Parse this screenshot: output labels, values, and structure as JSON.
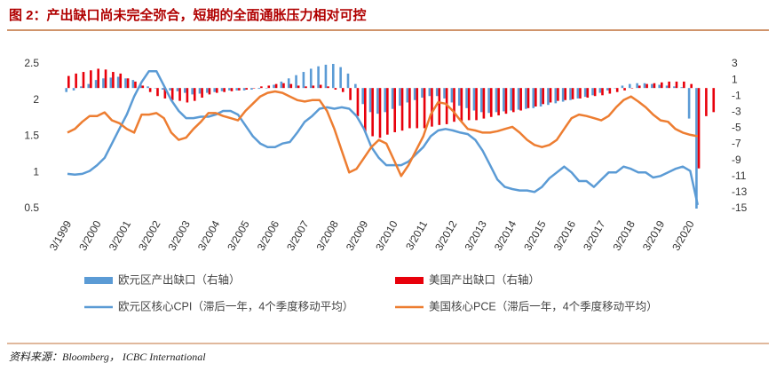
{
  "chart_data": {
    "type": "combo",
    "title": "图 2：产出缺口尚未完全弥合，短期的全面通胀压力相对可控",
    "source": "资料来源：Bloomberg， ICBC International",
    "categories": [
      "3/1999",
      null,
      null,
      null,
      "3/2000",
      null,
      null,
      null,
      "3/2001",
      null,
      null,
      null,
      "3/2002",
      null,
      null,
      null,
      "3/2003",
      null,
      null,
      null,
      "3/2004",
      null,
      null,
      null,
      "3/2005",
      null,
      null,
      null,
      "3/2006",
      null,
      null,
      null,
      "3/2007",
      null,
      null,
      null,
      "3/2008",
      null,
      null,
      null,
      "3/2009",
      null,
      null,
      null,
      "3/2010",
      null,
      null,
      null,
      "3/2011",
      null,
      null,
      null,
      "3/2012",
      null,
      null,
      null,
      "3/2013",
      null,
      null,
      null,
      "3/2014",
      null,
      null,
      null,
      "3/2015",
      null,
      null,
      null,
      "3/2016",
      null,
      null,
      null,
      "3/2017",
      null,
      null,
      null,
      "3/2018",
      null,
      null,
      null,
      "3/2019",
      null,
      null,
      null,
      "3/2020",
      null,
      null,
      null
    ],
    "ylim": [
      0.5,
      2.5
    ],
    "yticks": [
      0.5,
      1,
      1.5,
      2,
      2.5
    ],
    "y2lim": [
      -15,
      3
    ],
    "y2ticks": [
      -15,
      -13,
      -11,
      -9,
      -7,
      -5,
      -3,
      -1,
      1,
      3
    ],
    "series": [
      {
        "name": "欧元区产出缺口（右轴）",
        "type": "bar",
        "axis": "y2",
        "color": "#5b9bd5",
        "values": [
          -0.5,
          -0.3,
          0.2,
          0.5,
          1,
          1.2,
          1.3,
          1.4,
          1.2,
          1,
          0.5,
          0.2,
          0,
          -0.2,
          -0.3,
          -0.4,
          -0.6,
          -0.8,
          -0.7,
          -0.6,
          -0.5,
          -0.4,
          -0.3,
          -0.3,
          -0.3,
          -0.2,
          -0.1,
          0,
          0.4,
          0.8,
          1.2,
          1.6,
          2,
          2.4,
          2.7,
          2.9,
          3,
          2.6,
          1.8,
          0.5,
          -2,
          -3,
          -3.2,
          -3,
          -2.6,
          -2.2,
          -1.8,
          -1.5,
          -1.2,
          -1,
          -1,
          -1.3,
          -1.8,
          -2.2,
          -2.5,
          -2.8,
          -3,
          -3.1,
          -3,
          -2.9,
          -2.8,
          -2.7,
          -2.6,
          -2.5,
          -2.3,
          -2.1,
          -1.9,
          -1.7,
          -1.5,
          -1.3,
          -1.1,
          -0.9,
          -0.6,
          -0.3,
          0,
          0.3,
          0.5,
          0.6,
          0.6,
          0.5,
          0.4,
          0.3,
          0.2,
          0.1,
          -3.8,
          -15,
          null,
          null
        ]
      },
      {
        "name": "美国产出缺口（右轴）",
        "type": "bar",
        "axis": "y2",
        "color": "#e8000b",
        "values": [
          1.5,
          1.8,
          2,
          2.2,
          2.4,
          2.3,
          2,
          1.8,
          1.2,
          0.8,
          0.3,
          -0.5,
          -1,
          -1.3,
          -1.5,
          -1.6,
          -1.8,
          -1.6,
          -1.2,
          -0.8,
          -0.6,
          -0.5,
          -0.4,
          -0.3,
          -0.2,
          0,
          0.2,
          0.3,
          0.5,
          0.6,
          0.5,
          0.3,
          0.2,
          0.3,
          0.4,
          0.2,
          -0.2,
          -0.5,
          -1.5,
          -3.5,
          -5.5,
          -6,
          -6.2,
          -5.8,
          -5.5,
          -5.3,
          -5,
          -5,
          -5,
          -4.8,
          -4.6,
          -4.5,
          -4.2,
          -4.1,
          -4,
          -4,
          -3.8,
          -3.6,
          -3.4,
          -3.2,
          -3,
          -2.8,
          -2.5,
          -2.3,
          -2,
          -1.8,
          -1.6,
          -1.5,
          -1.4,
          -1.3,
          -1.2,
          -1,
          -0.9,
          -0.7,
          -0.5,
          -0.3,
          0,
          0.3,
          0.5,
          0.6,
          0.7,
          0.8,
          0.8,
          0.8,
          0.5,
          -10,
          -3.5,
          -3
        ]
      },
      {
        "name": "欧元区核心CPI（滞后一年，4个季度移动平均）",
        "type": "line",
        "color": "#5b9bd5",
        "values": [
          0.98,
          0.97,
          0.98,
          1.02,
          1.1,
          1.2,
          1.4,
          1.6,
          1.8,
          2.05,
          2.25,
          2.4,
          2.4,
          2.2,
          2,
          1.85,
          1.75,
          1.75,
          1.77,
          1.77,
          1.8,
          1.85,
          1.85,
          1.8,
          1.65,
          1.5,
          1.4,
          1.35,
          1.35,
          1.4,
          1.42,
          1.55,
          1.7,
          1.78,
          1.88,
          1.9,
          1.88,
          1.9,
          1.88,
          1.78,
          1.6,
          1.35,
          1.2,
          1.1,
          1.1,
          1.1,
          1.15,
          1.25,
          1.35,
          1.5,
          1.58,
          1.6,
          1.58,
          1.55,
          1.53,
          1.45,
          1.3,
          1.1,
          0.9,
          0.8,
          0.77,
          0.75,
          0.75,
          0.73,
          0.8,
          0.92,
          1,
          1.08,
          1,
          0.88,
          0.88,
          0.8,
          0.9,
          1,
          1,
          1.08,
          1.05,
          1,
          1,
          0.93,
          0.95,
          1,
          1.05,
          1.08,
          1.02,
          0.55,
          null,
          null
        ]
      },
      {
        "name": "美国核心PCE（滞后一年，4个季度移动平均）",
        "type": "line",
        "color": "#ed7d31",
        "values": [
          1.55,
          1.6,
          1.7,
          1.78,
          1.78,
          1.83,
          1.72,
          1.68,
          1.6,
          1.55,
          1.8,
          1.8,
          1.82,
          1.75,
          1.55,
          1.45,
          1.48,
          1.6,
          1.7,
          1.82,
          1.82,
          1.78,
          1.75,
          1.72,
          1.85,
          1.95,
          2.05,
          2.1,
          2.12,
          2.1,
          2.05,
          2,
          1.98,
          2,
          2,
          1.85,
          1.6,
          1.3,
          1,
          1.05,
          1.2,
          1.35,
          1.45,
          1.4,
          1.18,
          0.95,
          1.1,
          1.3,
          1.5,
          1.8,
          1.97,
          1.95,
          1.85,
          1.72,
          1.6,
          1.58,
          1.55,
          1.55,
          1.57,
          1.6,
          1.63,
          1.55,
          1.45,
          1.38,
          1.35,
          1.38,
          1.45,
          1.6,
          1.75,
          1.8,
          1.78,
          1.75,
          1.72,
          1.78,
          1.9,
          2,
          2.05,
          1.98,
          1.9,
          1.8,
          1.72,
          1.7,
          1.6,
          1.55,
          1.52,
          1.5,
          null,
          null
        ]
      }
    ]
  }
}
